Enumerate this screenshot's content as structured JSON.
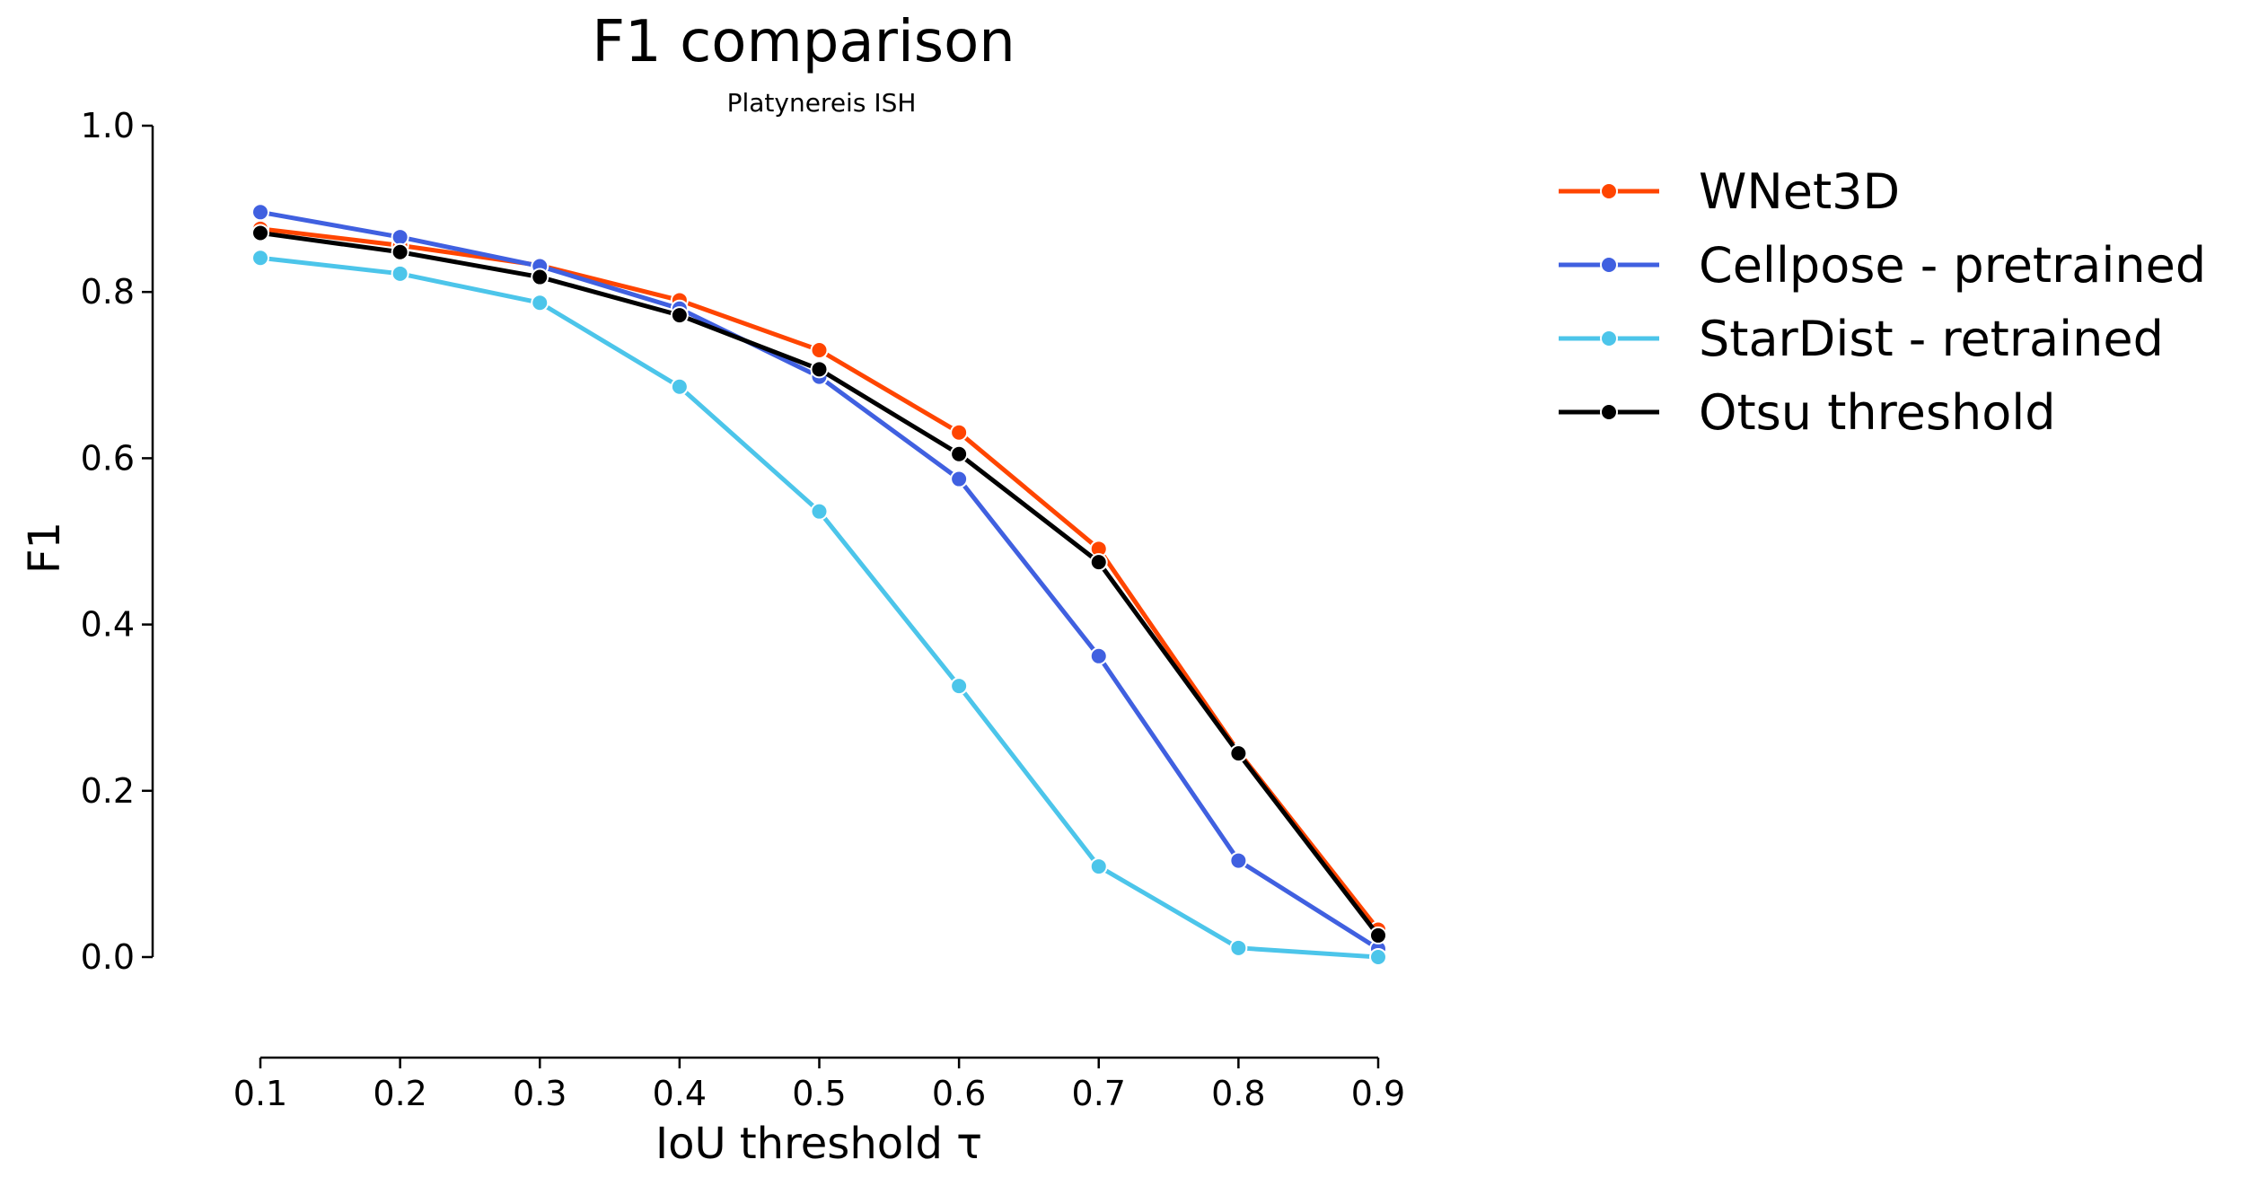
{
  "chart_data": {
    "type": "line",
    "title": "F1 comparison",
    "subtitle": "Platynereis ISH",
    "xlabel": "IoU threshold τ",
    "ylabel": "F1",
    "x": [
      0.1,
      0.2,
      0.3,
      0.4,
      0.5,
      0.6,
      0.7,
      0.8,
      0.9
    ],
    "x_tick_labels": [
      "0.1",
      "0.2",
      "0.3",
      "0.4",
      "0.5",
      "0.6",
      "0.7",
      "0.8",
      "0.9"
    ],
    "y_tick_labels": [
      "0.0",
      "0.2",
      "0.4",
      "0.6",
      "0.8",
      "1.0"
    ],
    "y_ticks": [
      0.0,
      0.2,
      0.4,
      0.6,
      0.8,
      1.0
    ],
    "xlim": [
      0.1,
      0.9
    ],
    "ylim": [
      0.0,
      1.0
    ],
    "grid": false,
    "legend_position": "right",
    "series": [
      {
        "name": "WNet3D",
        "color": "#ff4500",
        "values": [
          0.876,
          0.856,
          0.832,
          0.79,
          0.73,
          0.631,
          0.491,
          0.247,
          0.033
        ]
      },
      {
        "name": "Cellpose - pretrained",
        "color": "#4060e0",
        "values": [
          0.896,
          0.866,
          0.831,
          0.78,
          0.698,
          0.575,
          0.362,
          0.116,
          0.01
        ]
      },
      {
        "name": "StarDist - retrained",
        "color": "#4cc5ea",
        "values": [
          0.841,
          0.822,
          0.787,
          0.686,
          0.536,
          0.326,
          0.109,
          0.011,
          0.0
        ]
      },
      {
        "name": "Otsu threshold",
        "color": "#000000",
        "values": [
          0.871,
          0.848,
          0.818,
          0.772,
          0.707,
          0.605,
          0.475,
          0.245,
          0.026
        ]
      }
    ]
  }
}
